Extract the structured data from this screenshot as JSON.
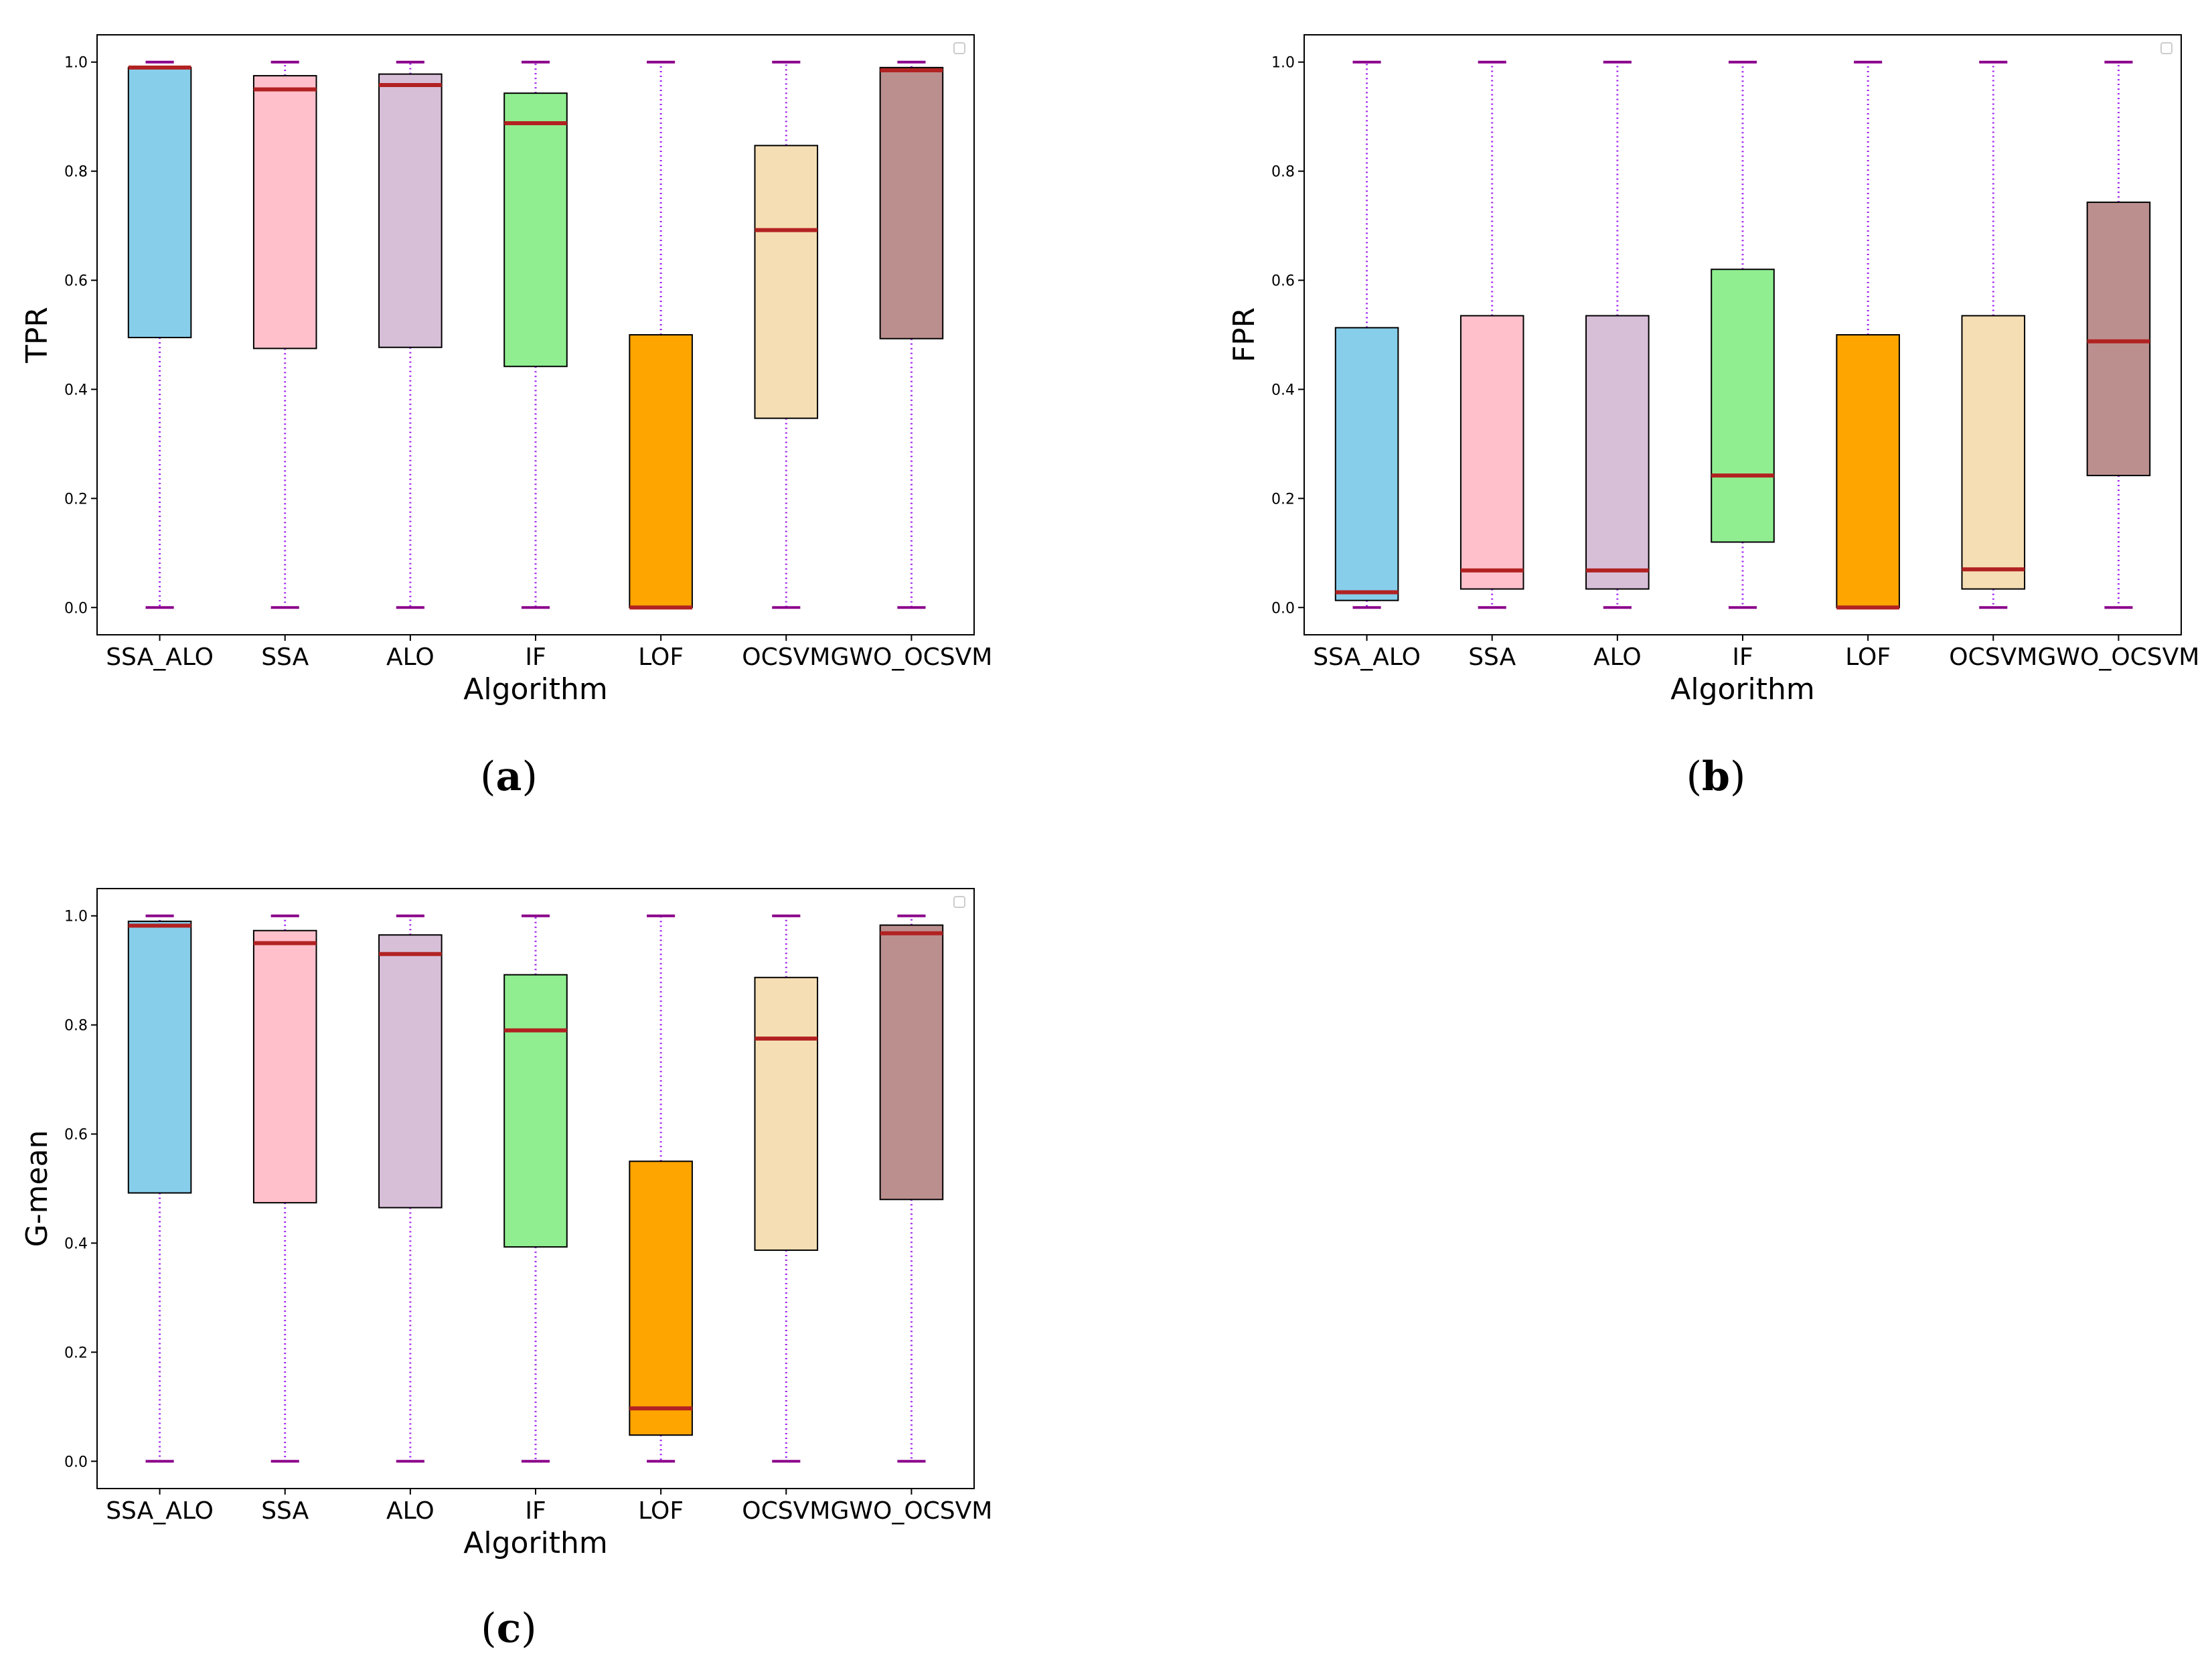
{
  "chart_data": [
    {
      "panel": "a",
      "type": "box",
      "caption": {
        "open": "(",
        "letter": "a",
        "close": ")"
      },
      "xlabel": "Algorithm",
      "ylabel": "TPR",
      "ylim": [
        -0.05,
        1.05
      ],
      "yticks": [
        "0.0",
        "0.2",
        "0.4",
        "0.6",
        "0.8",
        "1.0"
      ],
      "categories": [
        "SSA_ALO",
        "SSA",
        "ALO",
        "IF",
        "LOF",
        "OCSVM",
        "GWO_OCSVM"
      ],
      "boxes": [
        {
          "min": 0.0,
          "q1": 0.495,
          "median": 0.99,
          "q3": 0.99,
          "max": 1.0
        },
        {
          "min": 0.0,
          "q1": 0.475,
          "median": 0.95,
          "q3": 0.975,
          "max": 1.0
        },
        {
          "min": 0.0,
          "q1": 0.477,
          "median": 0.958,
          "q3": 0.978,
          "max": 1.0
        },
        {
          "min": 0.0,
          "q1": 0.442,
          "median": 0.888,
          "q3": 0.943,
          "max": 1.0
        },
        {
          "min": 0.0,
          "q1": 0.0,
          "median": 0.0,
          "q3": 0.5,
          "max": 1.0
        },
        {
          "min": 0.0,
          "q1": 0.347,
          "median": 0.692,
          "q3": 0.847,
          "max": 1.0
        },
        {
          "min": 0.0,
          "q1": 0.493,
          "median": 0.985,
          "q3": 0.99,
          "max": 1.0
        }
      ]
    },
    {
      "panel": "b",
      "type": "box",
      "caption": {
        "open": "(",
        "letter": "b",
        "close": ")"
      },
      "xlabel": "Algorithm",
      "ylabel": "FPR",
      "ylim": [
        -0.05,
        1.05
      ],
      "yticks": [
        "0.0",
        "0.2",
        "0.4",
        "0.6",
        "0.8",
        "1.0"
      ],
      "categories": [
        "SSA_ALO",
        "SSA",
        "ALO",
        "IF",
        "LOF",
        "OCSVM",
        "GWO_OCSVM"
      ],
      "boxes": [
        {
          "min": 0.0,
          "q1": 0.013,
          "median": 0.028,
          "q3": 0.513,
          "max": 1.0
        },
        {
          "min": 0.0,
          "q1": 0.034,
          "median": 0.068,
          "q3": 0.535,
          "max": 1.0
        },
        {
          "min": 0.0,
          "q1": 0.034,
          "median": 0.068,
          "q3": 0.535,
          "max": 1.0
        },
        {
          "min": 0.0,
          "q1": 0.12,
          "median": 0.242,
          "q3": 0.62,
          "max": 1.0
        },
        {
          "min": 0.0,
          "q1": 0.0,
          "median": 0.0,
          "q3": 0.5,
          "max": 1.0
        },
        {
          "min": 0.0,
          "q1": 0.034,
          "median": 0.07,
          "q3": 0.535,
          "max": 1.0
        },
        {
          "min": 0.0,
          "q1": 0.242,
          "median": 0.488,
          "q3": 0.743,
          "max": 1.0
        }
      ]
    },
    {
      "panel": "c",
      "type": "box",
      "caption": {
        "open": "(",
        "letter": "c",
        "close": ")"
      },
      "xlabel": "Algorithm",
      "ylabel": "G-mean",
      "ylim": [
        -0.05,
        1.05
      ],
      "yticks": [
        "0.0",
        "0.2",
        "0.4",
        "0.6",
        "0.8",
        "1.0"
      ],
      "categories": [
        "SSA_ALO",
        "SSA",
        "ALO",
        "IF",
        "LOF",
        "OCSVM",
        "GWO_OCSVM"
      ],
      "boxes": [
        {
          "min": 0.0,
          "q1": 0.492,
          "median": 0.982,
          "q3": 0.99,
          "max": 1.0
        },
        {
          "min": 0.0,
          "q1": 0.474,
          "median": 0.95,
          "q3": 0.973,
          "max": 1.0
        },
        {
          "min": 0.0,
          "q1": 0.465,
          "median": 0.93,
          "q3": 0.965,
          "max": 1.0
        },
        {
          "min": 0.0,
          "q1": 0.393,
          "median": 0.79,
          "q3": 0.892,
          "max": 1.0
        },
        {
          "min": 0.0,
          "q1": 0.048,
          "median": 0.097,
          "q3": 0.55,
          "max": 1.0
        },
        {
          "min": 0.0,
          "q1": 0.387,
          "median": 0.775,
          "q3": 0.887,
          "max": 1.0
        },
        {
          "min": 0.0,
          "q1": 0.48,
          "median": 0.968,
          "q3": 0.983,
          "max": 1.0
        }
      ]
    }
  ],
  "style": {
    "box_colors": [
      "#87ceeb",
      "#ffc0cb",
      "#d8bfd8",
      "#90ee90",
      "#ffa500",
      "#f5deb3",
      "#bc8f8f"
    ],
    "median_color": "#b22222",
    "whisker_color": "#a020f0",
    "cap_color": "#8b008b"
  }
}
